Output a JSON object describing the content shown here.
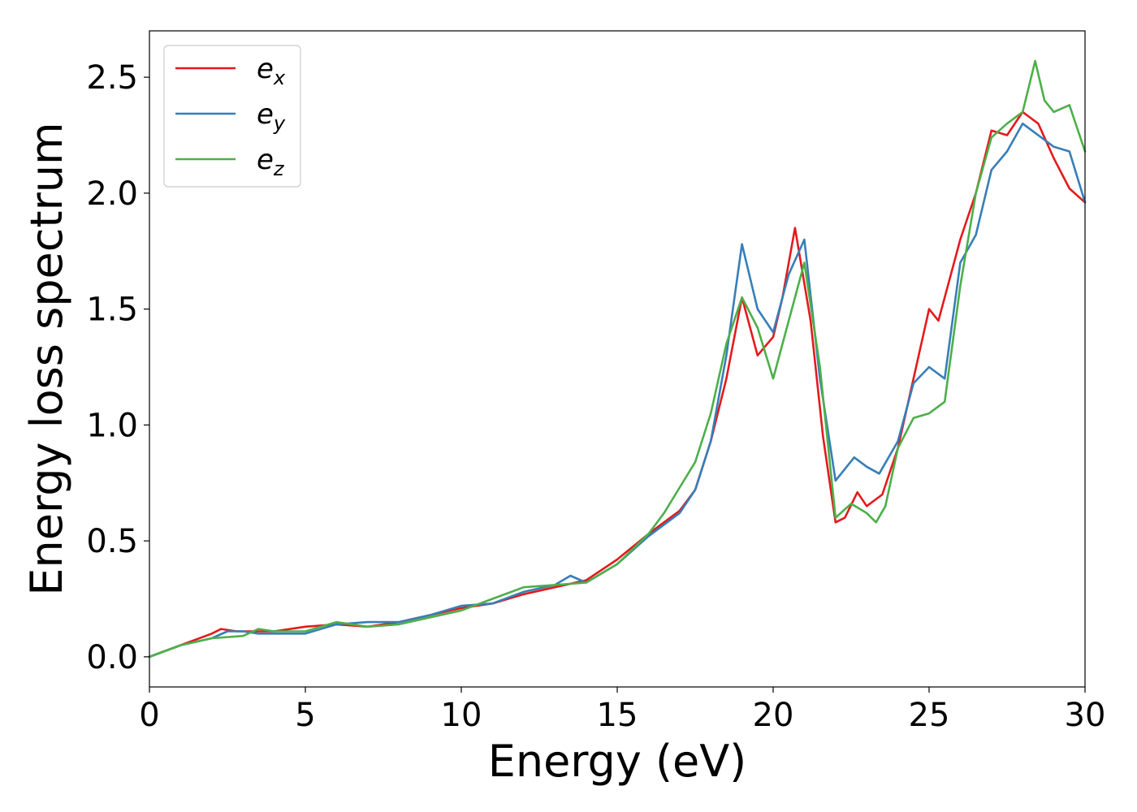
{
  "chart_data": {
    "type": "line",
    "title": "",
    "xlabel": "Energy (eV)",
    "ylabel": "Energy loss spectrum",
    "xlim": [
      0,
      30
    ],
    "ylim": [
      -0.13,
      2.7
    ],
    "xticks": [
      0,
      5,
      10,
      15,
      20,
      25,
      30
    ],
    "xtick_labels": [
      "0",
      "5",
      "10",
      "15",
      "20",
      "25",
      "30"
    ],
    "yticks": [
      0.0,
      0.5,
      1.0,
      1.5,
      2.0,
      2.5
    ],
    "ytick_labels": [
      "0.0",
      "0.5",
      "1.0",
      "1.5",
      "2.0",
      "2.5"
    ],
    "grid": false,
    "legend_position": "top-left",
    "series": [
      {
        "name": "e_x",
        "legend_base": "e",
        "legend_sub": "x",
        "color": "#e41a1c",
        "x": [
          0,
          1,
          2,
          2.3,
          2.8,
          3.5,
          4,
          5,
          6,
          7,
          8,
          9,
          10,
          11,
          12,
          13,
          14,
          15,
          16,
          17,
          17.5,
          18,
          18.5,
          19,
          19.5,
          20,
          20.3,
          20.7,
          21.2,
          21.6,
          22,
          22.3,
          22.7,
          23,
          23.5,
          24,
          24.5,
          25,
          25.3,
          25.7,
          26,
          26.5,
          27,
          27.5,
          28,
          28.5,
          29,
          29.5,
          30
        ],
        "y": [
          0.0,
          0.05,
          0.1,
          0.12,
          0.11,
          0.11,
          0.11,
          0.13,
          0.14,
          0.13,
          0.15,
          0.18,
          0.21,
          0.23,
          0.27,
          0.3,
          0.33,
          0.42,
          0.53,
          0.63,
          0.72,
          0.93,
          1.2,
          1.55,
          1.3,
          1.38,
          1.55,
          1.85,
          1.45,
          0.95,
          0.58,
          0.6,
          0.71,
          0.65,
          0.7,
          0.9,
          1.2,
          1.5,
          1.45,
          1.65,
          1.8,
          2.0,
          2.27,
          2.25,
          2.35,
          2.3,
          2.15,
          2.02,
          1.96
        ]
      },
      {
        "name": "e_y",
        "legend_base": "e",
        "legend_sub": "y",
        "color": "#377eb8",
        "x": [
          0,
          1,
          2,
          2.5,
          3,
          3.5,
          4,
          5,
          6,
          7,
          8,
          9,
          10,
          11,
          12,
          13,
          13.5,
          14,
          15,
          16,
          17,
          17.5,
          18,
          18.5,
          19,
          19.5,
          20,
          20.5,
          21,
          21.5,
          22,
          22.6,
          23,
          23.4,
          24,
          24.5,
          25,
          25.5,
          26,
          26.5,
          27,
          27.5,
          28,
          28.5,
          29,
          29.5,
          30
        ],
        "y": [
          0.0,
          0.05,
          0.08,
          0.11,
          0.11,
          0.1,
          0.1,
          0.1,
          0.14,
          0.15,
          0.15,
          0.18,
          0.22,
          0.23,
          0.28,
          0.31,
          0.35,
          0.32,
          0.4,
          0.52,
          0.62,
          0.72,
          0.93,
          1.3,
          1.78,
          1.5,
          1.4,
          1.65,
          1.8,
          1.2,
          0.76,
          0.86,
          0.82,
          0.79,
          0.93,
          1.18,
          1.25,
          1.2,
          1.7,
          1.82,
          2.1,
          2.18,
          2.3,
          2.25,
          2.2,
          2.18,
          1.96
        ]
      },
      {
        "name": "e_z",
        "legend_base": "e",
        "legend_sub": "z",
        "color": "#4daf4a",
        "x": [
          0,
          1,
          2,
          3,
          3.5,
          4,
          5,
          6,
          7,
          8,
          9,
          10,
          11,
          12,
          13,
          14,
          15,
          16,
          16.5,
          17,
          17.5,
          18,
          18.5,
          19,
          19.5,
          20,
          20.5,
          21,
          21.5,
          22,
          22.5,
          23,
          23.3,
          23.6,
          24,
          24.5,
          25,
          25.5,
          26,
          26.5,
          27,
          27.5,
          28,
          28.4,
          28.7,
          29,
          29.5,
          30
        ],
        "y": [
          0.0,
          0.05,
          0.08,
          0.09,
          0.12,
          0.11,
          0.11,
          0.15,
          0.13,
          0.14,
          0.17,
          0.2,
          0.25,
          0.3,
          0.31,
          0.32,
          0.4,
          0.53,
          0.62,
          0.73,
          0.84,
          1.05,
          1.35,
          1.55,
          1.42,
          1.2,
          1.45,
          1.7,
          1.25,
          0.6,
          0.66,
          0.62,
          0.58,
          0.65,
          0.9,
          1.03,
          1.05,
          1.1,
          1.6,
          2.0,
          2.24,
          2.3,
          2.35,
          2.57,
          2.4,
          2.35,
          2.38,
          2.18
        ]
      }
    ]
  }
}
